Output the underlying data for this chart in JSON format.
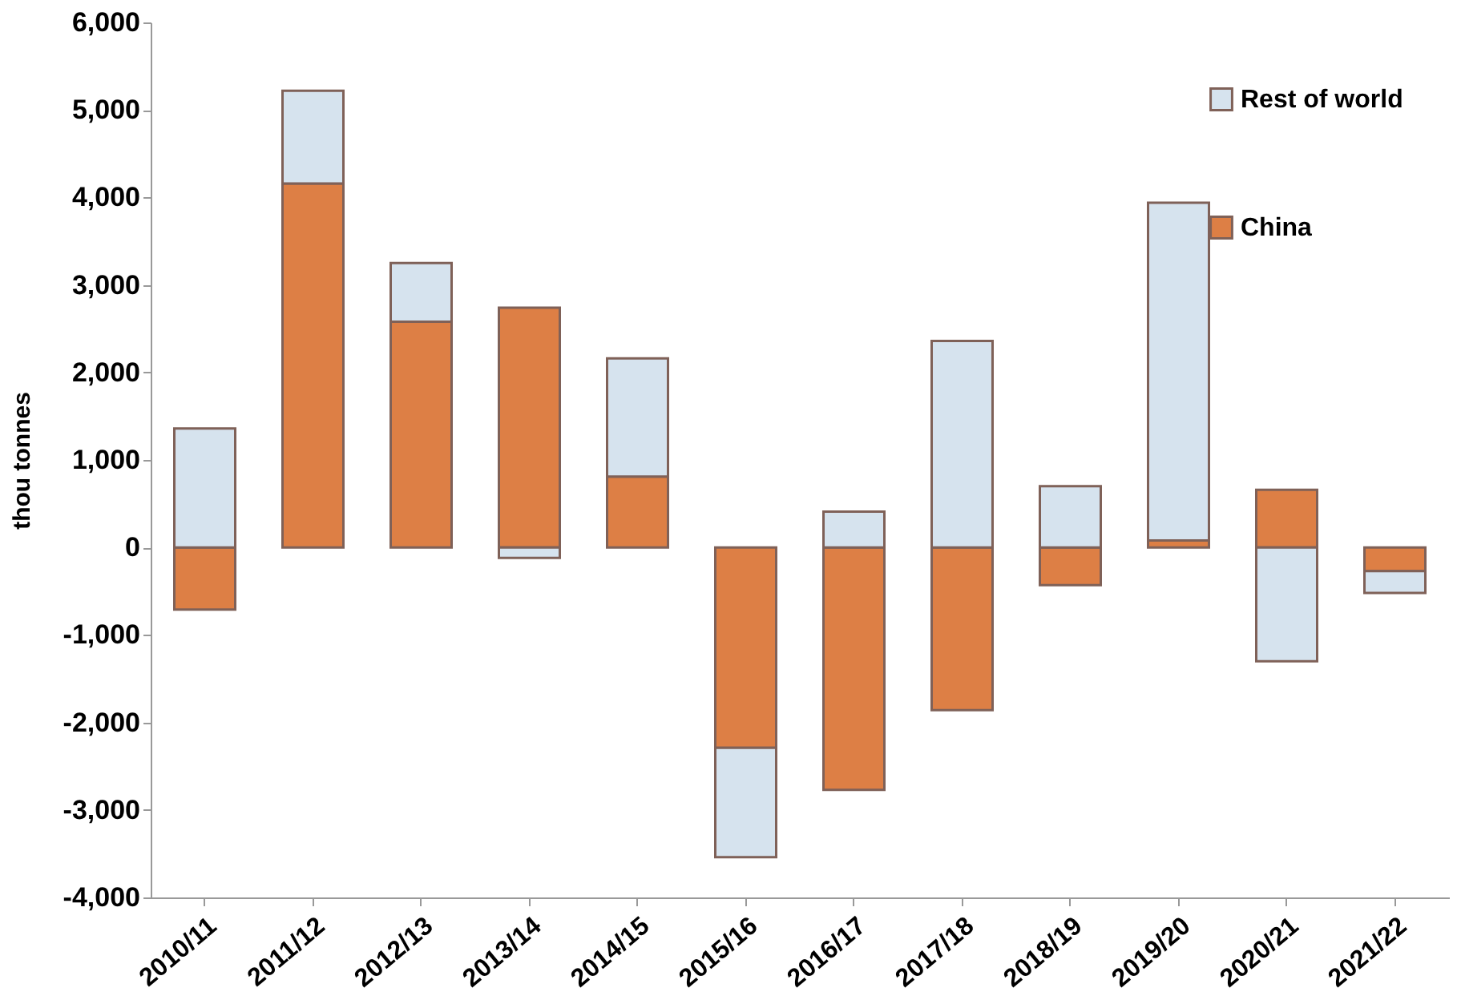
{
  "chart_data": {
    "type": "bar",
    "stacked": true,
    "ylabel": "thou tonnes",
    "categories": [
      "2010/11",
      "2011/12",
      "2012/13",
      "2013/14",
      "2014/15",
      "2015/16",
      "2016/17",
      "2017/18",
      "2018/19",
      "2019/20",
      "2020/21",
      "2021/22"
    ],
    "series": [
      {
        "name": "China",
        "color": "#dd7f45",
        "values": [
          -710,
          4160,
          2580,
          2740,
          810,
          -2290,
          -2770,
          -1860,
          -430,
          80,
          660,
          -270
        ]
      },
      {
        "name": "Rest of world",
        "color": "#d6e3ee",
        "values": [
          1360,
          1060,
          670,
          -120,
          1350,
          -1250,
          410,
          2360,
          700,
          3860,
          -1300,
          -250
        ]
      }
    ],
    "ylim": [
      -4000,
      6000
    ],
    "yticks": [
      {
        "value": -4000,
        "label": "-4,000"
      },
      {
        "value": -3000,
        "label": "-3,000"
      },
      {
        "value": -2000,
        "label": "-2,000"
      },
      {
        "value": -1000,
        "label": "-1,000"
      },
      0,
      {
        "value": 1000,
        "label": "1,000"
      },
      {
        "value": 2000,
        "label": "2,000"
      },
      {
        "value": 3000,
        "label": "3,000"
      },
      {
        "value": 4000,
        "label": "4,000"
      },
      {
        "value": 5000,
        "label": "5,000"
      },
      {
        "value": 6000,
        "label": "6,000"
      }
    ],
    "grid": false,
    "legend": "top right"
  }
}
